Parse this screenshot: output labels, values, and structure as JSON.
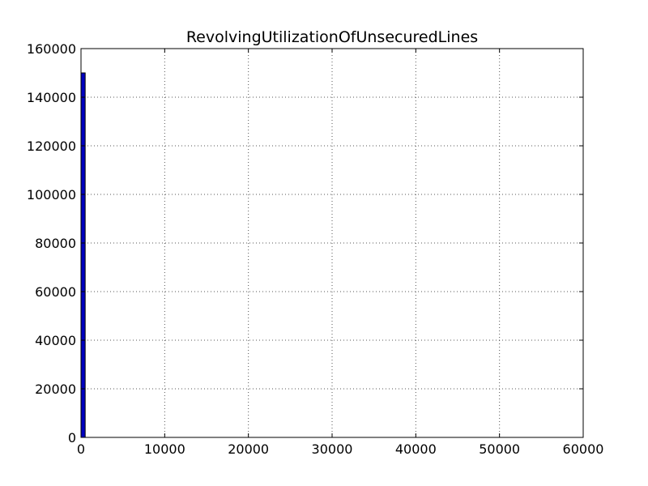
{
  "chart_data": {
    "type": "bar",
    "title": "RevolvingUtilizationOfUnsecuredLines",
    "xlabel": "",
    "ylabel": "",
    "xlim": [
      0,
      60000
    ],
    "ylim": [
      0,
      160000
    ],
    "xticks": [
      0,
      10000,
      20000,
      30000,
      40000,
      50000,
      60000
    ],
    "yticks": [
      0,
      20000,
      40000,
      60000,
      80000,
      100000,
      120000,
      140000,
      160000
    ],
    "grid": true,
    "colors": {
      "bar": "#0000bf",
      "bar_edge": "#000000",
      "grid": "#555555"
    },
    "bins": [
      {
        "x_start": 0,
        "x_end": 500,
        "count": 150000
      }
    ]
  }
}
